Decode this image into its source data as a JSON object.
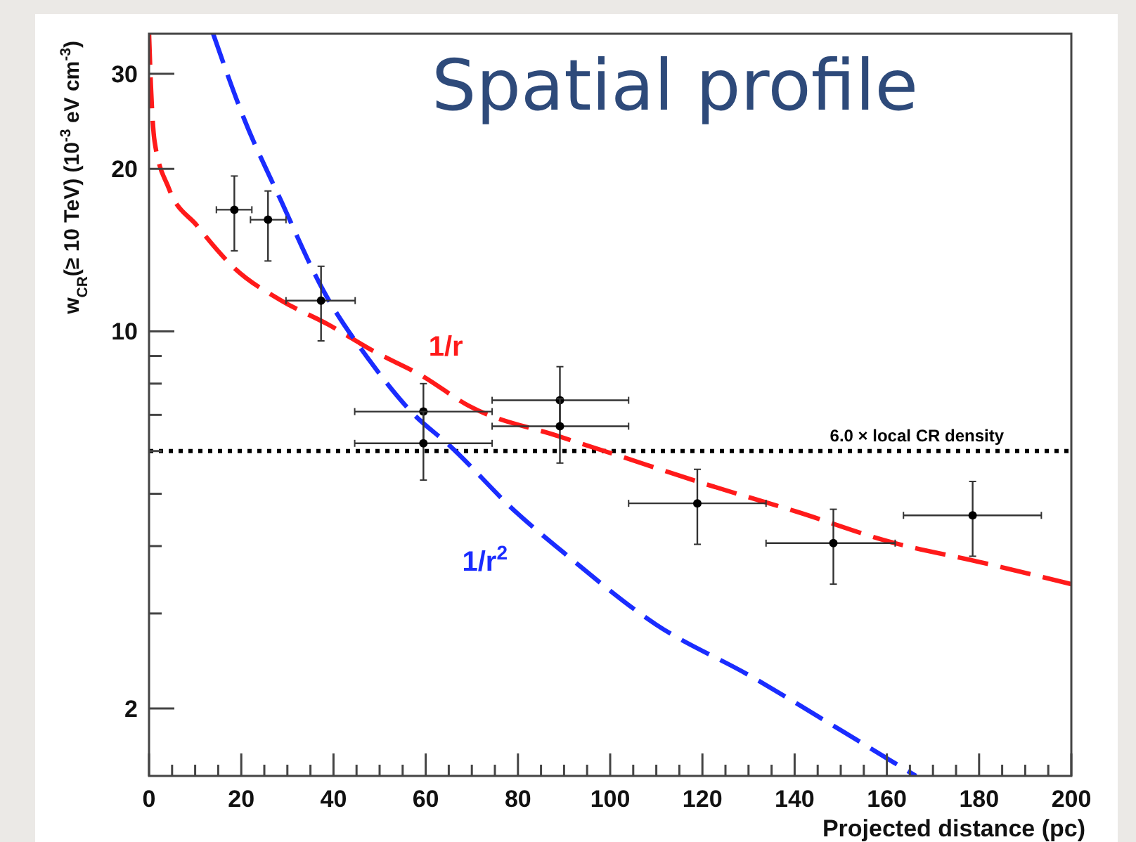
{
  "chart_data": {
    "type": "scatter",
    "title": "Spatial profile",
    "xlabel": "Projected distance (pc)",
    "ylabel": "w$_{CR}$(≥ 10 TeV) (10$^{-3}$ eV cm$^{-3}$)",
    "log": "y",
    "grid": false,
    "marker": "circle",
    "xlim": [
      0,
      200
    ],
    "ylim": [
      1.5,
      35.6
    ],
    "xticks": [
      0,
      {
        "value": 5,
        "label": null
      },
      {
        "value": 10,
        "label": null
      },
      {
        "value": 15,
        "label": null
      },
      20,
      {
        "value": 25,
        "label": null
      },
      {
        "value": 30,
        "label": null
      },
      {
        "value": 35,
        "label": null
      },
      40,
      {
        "value": 45,
        "label": null
      },
      {
        "value": 50,
        "label": null
      },
      {
        "value": 55,
        "label": null
      },
      60,
      {
        "value": 65,
        "label": null
      },
      {
        "value": 70,
        "label": null
      },
      {
        "value": 75,
        "label": null
      },
      80,
      {
        "value": 85,
        "label": null
      },
      {
        "value": 90,
        "label": null
      },
      {
        "value": 95,
        "label": null
      },
      100,
      {
        "value": 105,
        "label": null
      },
      {
        "value": 110,
        "label": null
      },
      {
        "value": 115,
        "label": null
      },
      120,
      {
        "value": 125,
        "label": null
      },
      {
        "value": 130,
        "label": null
      },
      {
        "value": 135,
        "label": null
      },
      140,
      {
        "value": 145,
        "label": null
      },
      {
        "value": 150,
        "label": null
      },
      {
        "value": 155,
        "label": null
      },
      160,
      {
        "value": 165,
        "label": null
      },
      {
        "value": 170,
        "label": null
      },
      {
        "value": 175,
        "label": null
      },
      180,
      {
        "value": 185,
        "label": null
      },
      {
        "value": 190,
        "label": null
      },
      {
        "value": 195,
        "label": null
      },
      200
    ],
    "yticks": [
      2,
      {
        "value": 3,
        "label": null
      },
      {
        "value": 4,
        "label": null
      },
      {
        "value": 5,
        "label": null
      },
      {
        "value": 6,
        "label": null
      },
      {
        "value": 7,
        "label": null
      },
      {
        "value": 8,
        "label": null
      },
      {
        "value": 9,
        "label": null
      },
      10,
      20,
      30
    ],
    "series": [
      {
        "type": "line",
        "name": "1/r",
        "color": "#ff1a1a",
        "line_style": "dashed",
        "marker": "none",
        "x": [
          0,
          0.4,
          1.2,
          4.3,
          10.4,
          18.5,
          28.7,
          38.8,
          49,
          59.1,
          69.3,
          89.1,
          99.8,
          120.1,
          140.5,
          160.8,
          181.1,
          200
        ],
        "values": [
          35.6,
          28.6,
          22.5,
          18.4,
          15.7,
          13.1,
          11.4,
          10.3,
          9.16,
          8.28,
          7.28,
          6.38,
          5.96,
          5.23,
          4.63,
          4.07,
          3.72,
          3.4
        ]
      },
      {
        "type": "line",
        "name": "1/r$^{2}$",
        "color": "#1a2cff",
        "line_style": "dashed",
        "marker": "none",
        "x": [
          13.9,
          20.5,
          28.7,
          37.8,
          48,
          57.1,
          65.2,
          79.5,
          89.6,
          110,
          130.3,
          150.6,
          166.3
        ],
        "values": [
          35.6,
          24.9,
          17.4,
          11.9,
          8.79,
          7.06,
          6.14,
          4.63,
          3.91,
          2.86,
          2.3,
          1.81,
          1.5
        ]
      },
      {
        "color": "#000000",
        "x": [
          18.5,
          25.8,
          37.3,
          59.5,
          59.5,
          89.1,
          89.1,
          118.9,
          148.4,
          178.6
        ],
        "values": [
          16.8,
          16.1,
          11.4,
          7.1,
          6.2,
          7.45,
          6.67,
          4.8,
          4.05,
          4.56
        ],
        "errors": [
          [
            14.1,
            19.4
          ],
          [
            13.5,
            18.2
          ],
          [
            9.6,
            13.2
          ],
          [
            6.2,
            8.0
          ],
          [
            5.3,
            7.1
          ],
          [
            6.7,
            8.6
          ],
          [
            5.7,
            7.5
          ],
          [
            4.03,
            5.55
          ],
          [
            3.4,
            4.68
          ],
          [
            3.83,
            5.27
          ]
        ],
        "xerrors": [
          [
            14.6,
            22.3
          ],
          [
            22,
            29.7
          ],
          [
            29.7,
            44.7
          ],
          [
            44.6,
            74.4
          ],
          [
            44.6,
            74.4
          ],
          [
            74.4,
            104
          ],
          [
            74.4,
            104
          ],
          [
            104,
            133.8
          ],
          [
            133.8,
            161.8
          ],
          [
            163.6,
            193.5
          ]
        ]
      }
    ],
    "ref_lines": [
      {
        "axis": "y",
        "value": 6.0,
        "label": "6.0 × local CR density",
        "color": "#000000",
        "line_style": "dotted"
      }
    ]
  }
}
